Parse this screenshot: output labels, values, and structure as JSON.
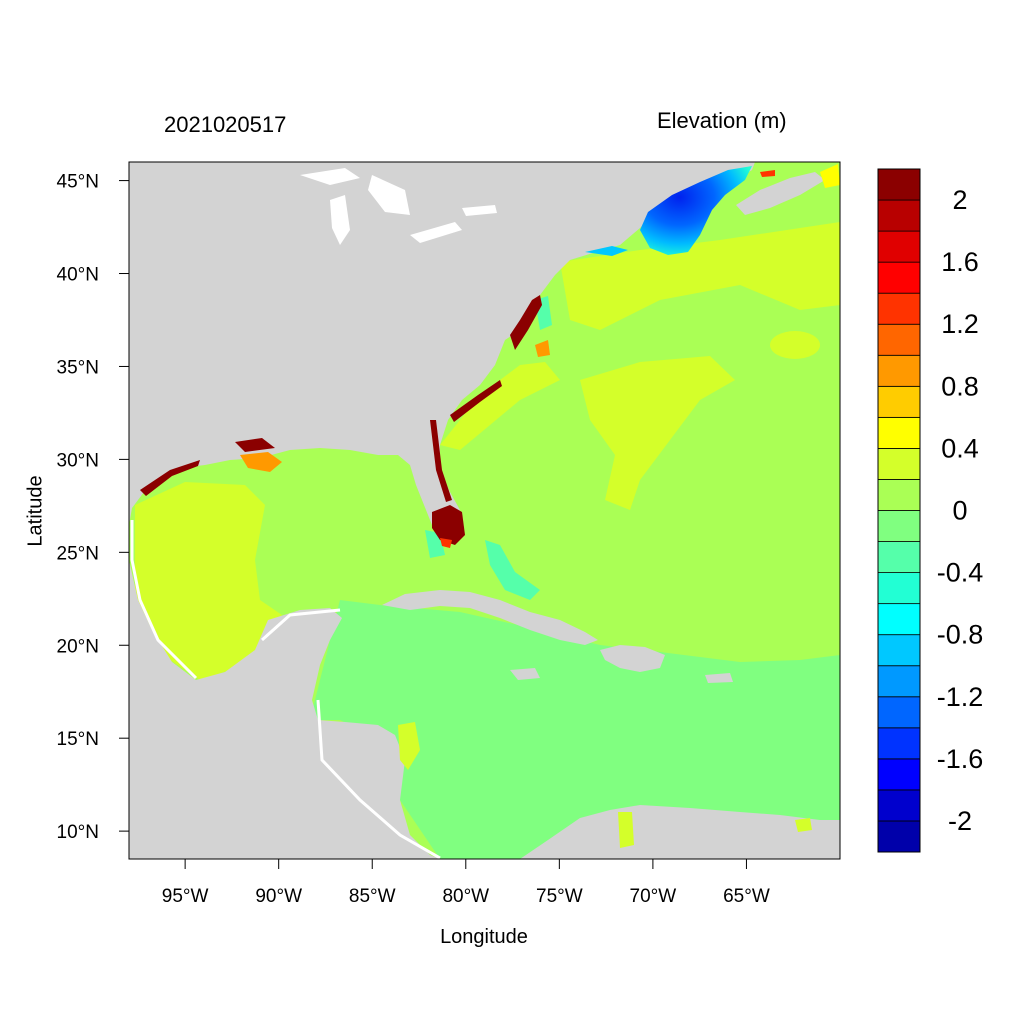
{
  "map": {
    "date_title": "2021020517",
    "variable_title": "Elevation (m)",
    "xlabel": "Longitude",
    "ylabel": "Latitude",
    "lon_range": [
      -98,
      -60
    ],
    "lat_range": [
      8.5,
      46
    ],
    "lon_ticks": [
      {
        "value": -95,
        "label": "95°W"
      },
      {
        "value": -90,
        "label": "90°W"
      },
      {
        "value": -85,
        "label": "85°W"
      },
      {
        "value": -80,
        "label": "80°W"
      },
      {
        "value": -75,
        "label": "75°W"
      },
      {
        "value": -70,
        "label": "70°W"
      },
      {
        "value": -65,
        "label": "65°W"
      }
    ],
    "lat_ticks": [
      {
        "value": 45,
        "label": "45°N"
      },
      {
        "value": 40,
        "label": "40°N"
      },
      {
        "value": 35,
        "label": "35°N"
      },
      {
        "value": 30,
        "label": "30°N"
      },
      {
        "value": 25,
        "label": "25°N"
      },
      {
        "value": 20,
        "label": "20°N"
      },
      {
        "value": 15,
        "label": "15°N"
      },
      {
        "value": 10,
        "label": "10°N"
      }
    ],
    "land_color": "#d3d3d3",
    "ocean_dominant_color": "#aaff55"
  },
  "colorbar": {
    "colors": [
      "#0000aa",
      "#0000cd",
      "#0000ff",
      "#0033ff",
      "#0066ff",
      "#0099ff",
      "#00c8ff",
      "#00ffff",
      "#22ffd4",
      "#55ffaa",
      "#80ff80",
      "#aaff55",
      "#d4ff2a",
      "#ffff00",
      "#ffcc00",
      "#ff9900",
      "#ff6600",
      "#ff3300",
      "#ff0000",
      "#e00000",
      "#b80000",
      "#8b0000"
    ],
    "labels": [
      "2",
      "1.6",
      "1.2",
      "0.8",
      "0.4",
      "0",
      "-0.4",
      "-0.8",
      "-1.2",
      "-1.6",
      "-2"
    ]
  }
}
